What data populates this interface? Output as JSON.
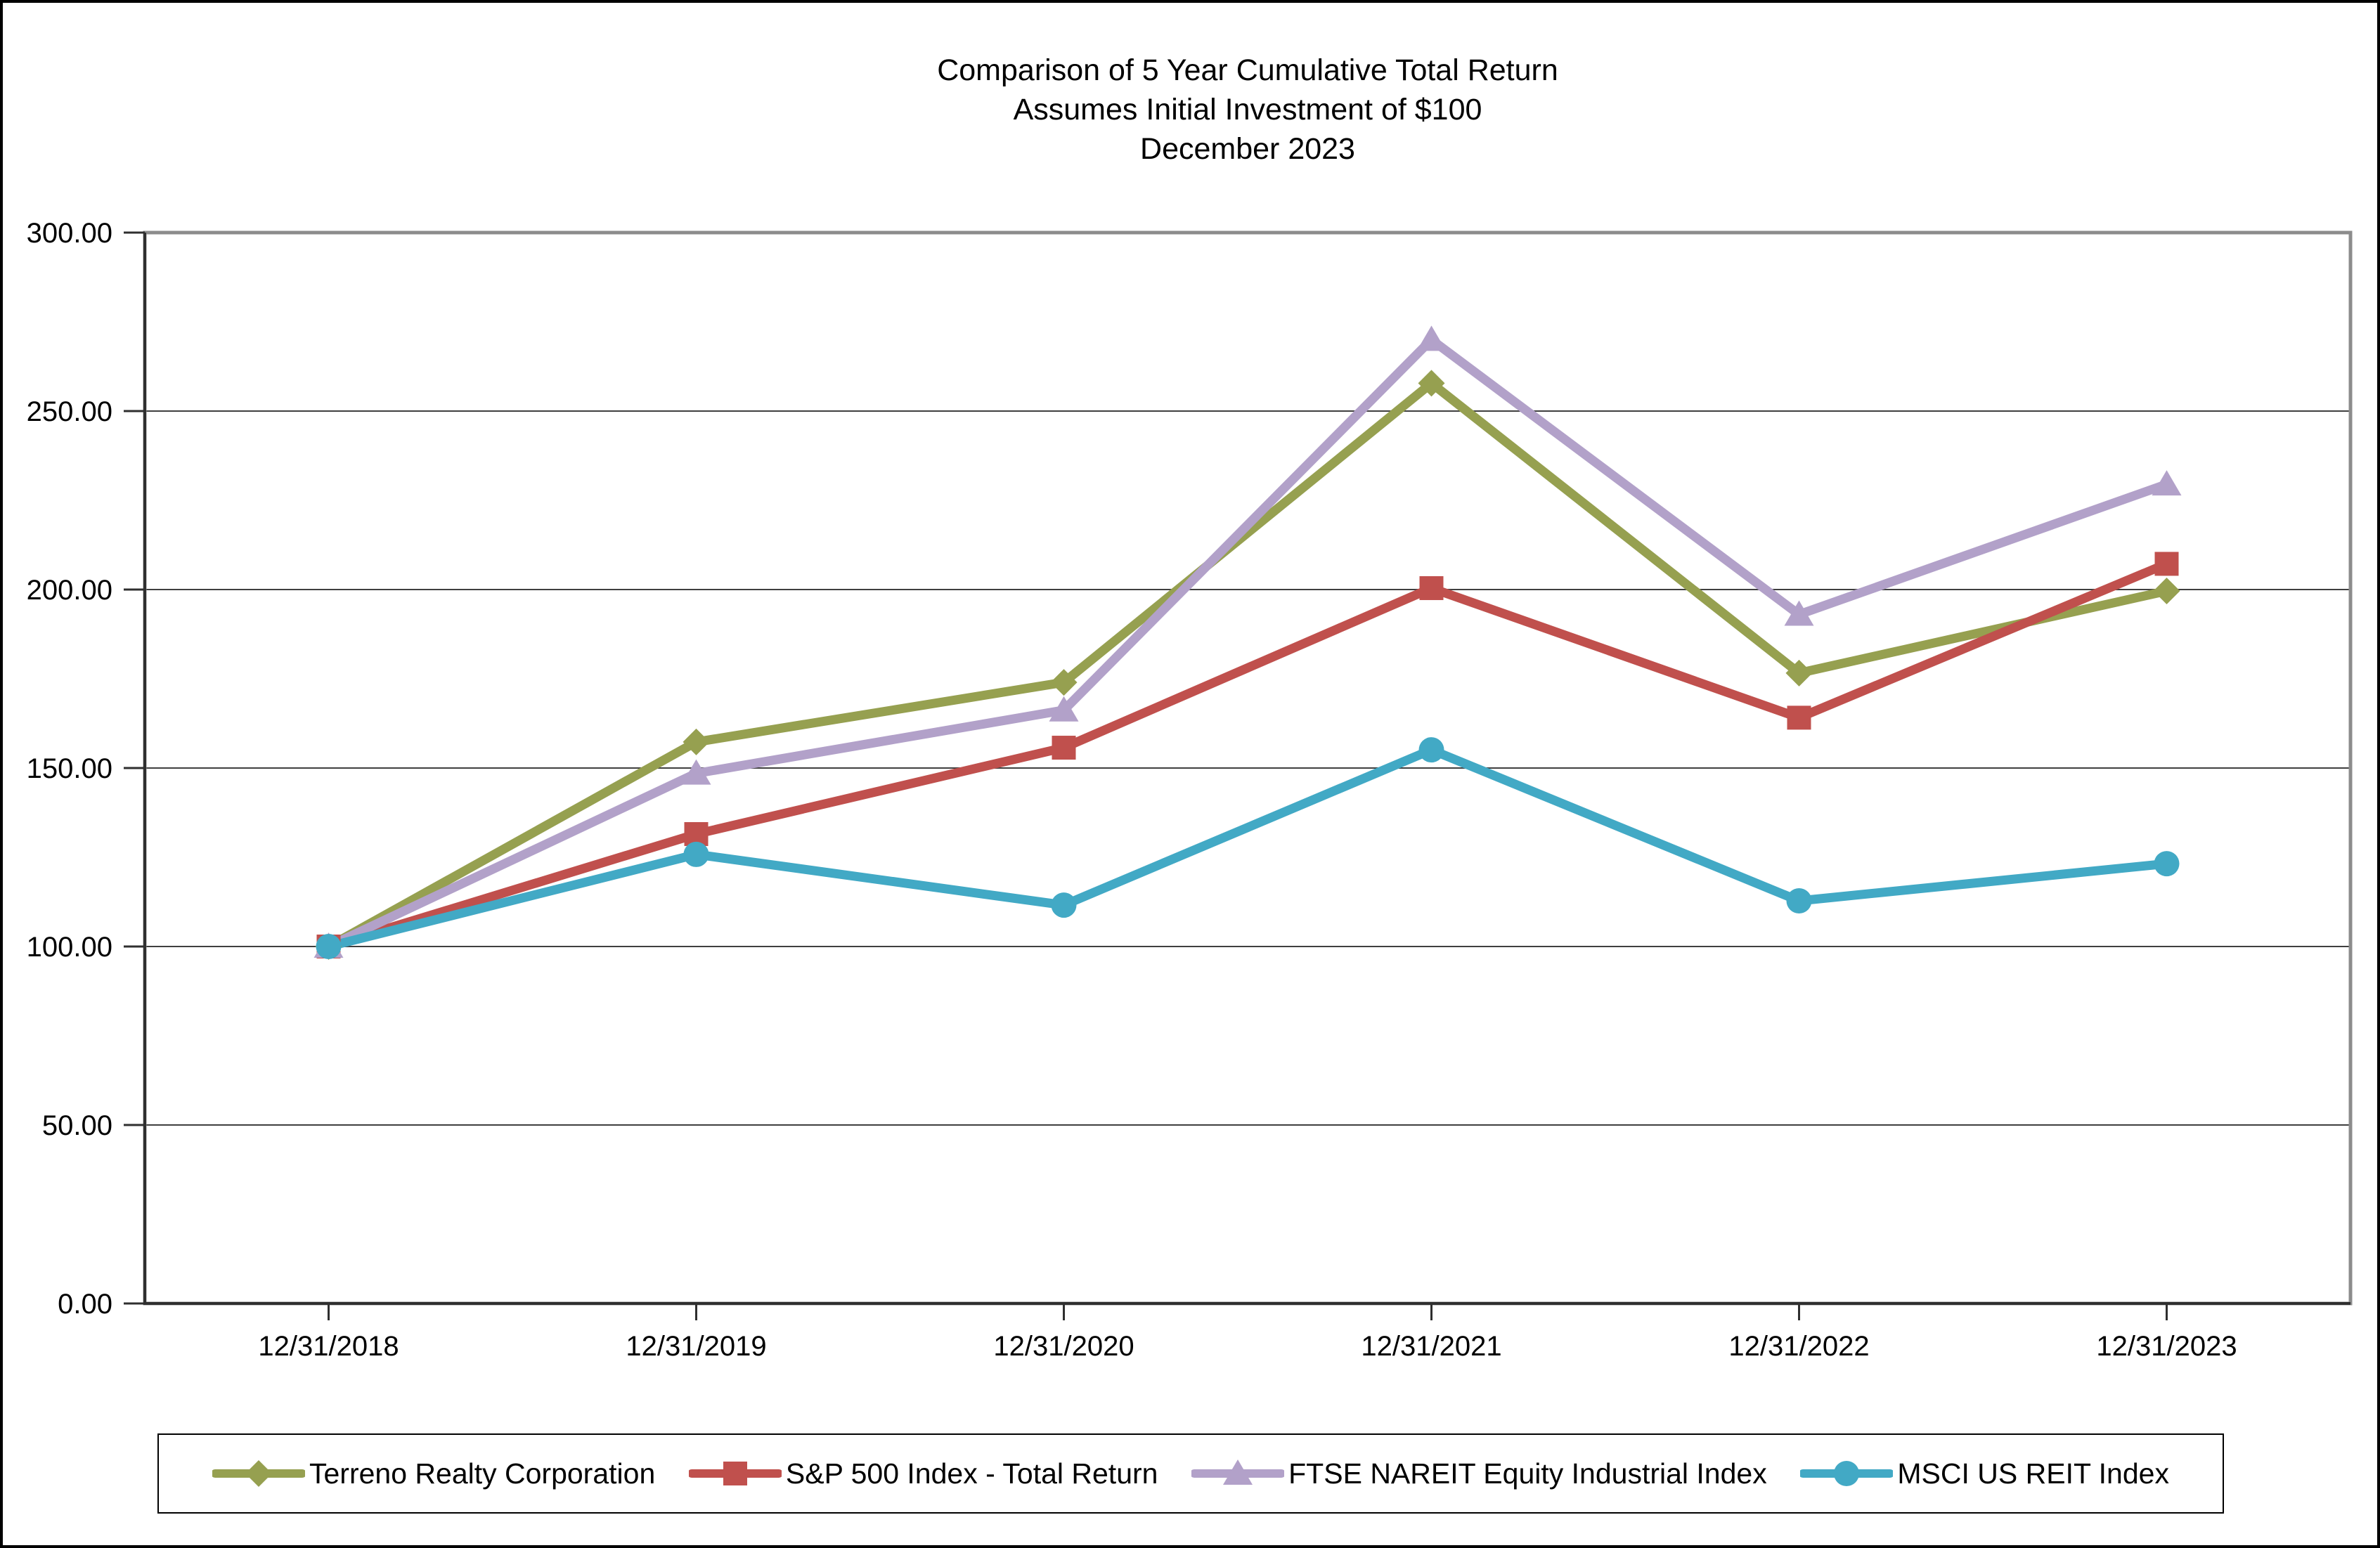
{
  "figure": {
    "title_line1": "Comparison of 5 Year Cumulative Total Return",
    "title_line2": "Assumes Initial Investment of $100",
    "title_line3": "December 2023"
  },
  "chart_data": {
    "type": "line",
    "title": "Comparison of 5 Year Cumulative Total Return",
    "subtitle1": "Assumes Initial Investment of $100",
    "subtitle2": "December 2023",
    "categories": [
      "12/31/2018",
      "12/31/2019",
      "12/31/2020",
      "12/31/2021",
      "12/31/2022",
      "12/31/2023"
    ],
    "series": [
      {
        "name": "Terreno Realty Corporation",
        "marker": "diamond",
        "color": "#96A050",
        "values": [
          100.0,
          157.3,
          174.0,
          257.8,
          176.6,
          199.6
        ]
      },
      {
        "name": "S&P 500 Index - Total Return",
        "marker": "square",
        "color": "#C0504D",
        "values": [
          100.0,
          131.5,
          155.7,
          200.4,
          164.1,
          207.2
        ]
      },
      {
        "name": "FTSE NAREIT Equity Industrial Index",
        "marker": "triangle",
        "color": "#B2A1C9",
        "values": [
          100.0,
          148.5,
          166.2,
          270.0,
          193.0,
          229.5
        ]
      },
      {
        "name": "MSCI US REIT Index",
        "marker": "circle",
        "color": "#42A9C5",
        "values": [
          100.0,
          125.8,
          111.6,
          155.1,
          112.8,
          123.2
        ]
      }
    ],
    "xlabel": "",
    "ylabel": "",
    "ylim": [
      0,
      300
    ],
    "ytick_step": 50,
    "ytick_labels": [
      "0.00",
      "50.00",
      "100.00",
      "150.00",
      "200.00",
      "250.00",
      "300.00"
    ],
    "grid": true,
    "legend_position": "bottom"
  },
  "colors": {
    "grid": "#3f3f3f",
    "frame": "#8c8c8c",
    "axis": "#2f2f2f",
    "text": "#000000",
    "background": "#ffffff",
    "outer_border": "#000000"
  }
}
